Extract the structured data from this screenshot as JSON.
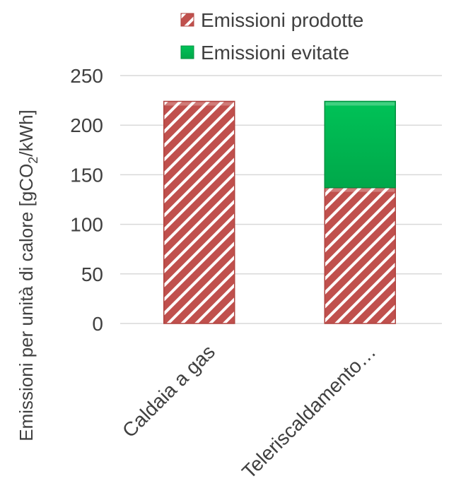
{
  "chart_data": {
    "type": "bar",
    "stacked": true,
    "categories": [
      "Caldaia a gas",
      "Teleriscaldamento…"
    ],
    "series": [
      {
        "name": "Emissioni prodotte",
        "values": [
          224,
          137
        ],
        "color": "#c0504d",
        "pattern": "diagonal-white-stripes"
      },
      {
        "name": "Emissioni evitate",
        "values": [
          0,
          87
        ],
        "color": "#00b050"
      }
    ],
    "yticks": [
      0,
      50,
      100,
      150,
      200,
      250
    ],
    "ylim": [
      0,
      250
    ],
    "ylabel_parts": [
      "Emissioni per unità di calore [gCO",
      "2",
      "/kWh]"
    ],
    "grid": true,
    "legend_position": "top-right"
  }
}
